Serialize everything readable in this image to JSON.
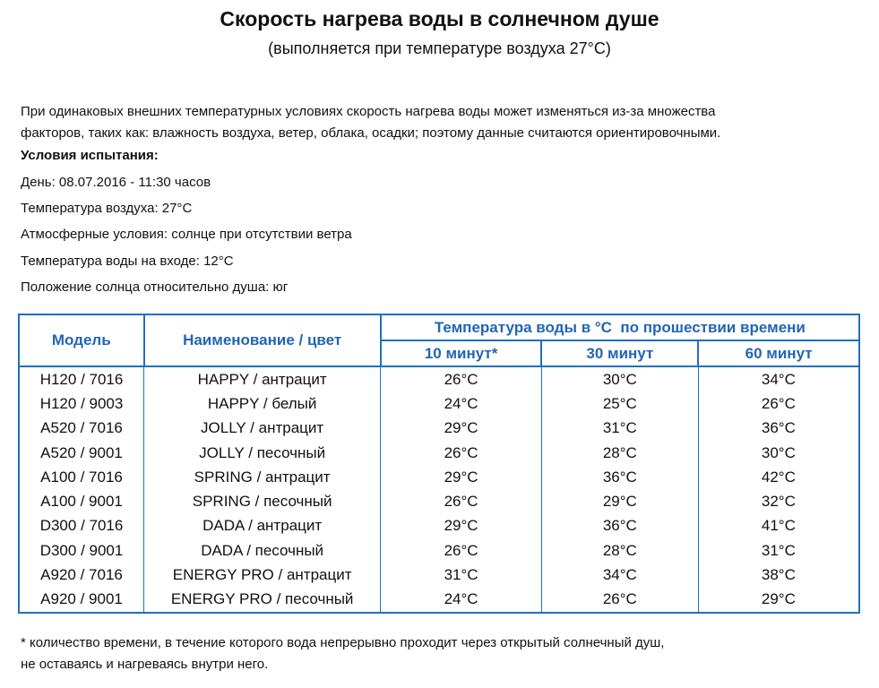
{
  "header": {
    "title": "Скорость нагрева воды в солнечном душе",
    "subtitle": "(выполняется при температуре воздуха 27°C)"
  },
  "intro": {
    "lines": [
      "При одинаковых внешних температурных условиях скорость нагрева воды может изменяться из-за множества",
      "факторов, таких как: влажность воздуха, ветер, облака, осадки; поэтому данные считаются ориентировочными."
    ],
    "conditions_heading": "Условия испытания:",
    "conditions": [
      "День: 08.07.2016 - 11:30 часов",
      "Температура воздуха: 27°C",
      "Атмосферные условия: солнце при отсутствии ветра",
      "Температура воды на входе: 12°C",
      "Положение солнца относительно душа: юг"
    ]
  },
  "table": {
    "col_model": "Модель",
    "col_name": "Наименование / цвет",
    "col_group": "Температура воды в °C  по прошествии времени",
    "col_times": [
      "10 минут*",
      "30 минут",
      "60 минут"
    ],
    "rows": [
      [
        "H120 / 7016",
        "HAPPY / антрацит",
        "26°C",
        "30°C",
        "34°C"
      ],
      [
        "H120 / 9003",
        "HAPPY / белый",
        "24°C",
        "25°C",
        "26°C"
      ],
      [
        "A520 / 7016",
        "JOLLY / антрацит",
        "29°C",
        "31°C",
        "36°C"
      ],
      [
        "A520 / 9001",
        "JOLLY / песочный",
        "26°C",
        "28°C",
        "30°C"
      ],
      [
        "A100 / 7016",
        "SPRING / антрацит",
        "29°C",
        "36°C",
        "42°C"
      ],
      [
        "A100 / 9001",
        "SPRING / песочный",
        "26°C",
        "29°C",
        "32°C"
      ],
      [
        "D300 / 7016",
        "DADA / антрацит",
        "29°C",
        "36°C",
        "41°C"
      ],
      [
        "D300 / 9001",
        "DADA / песочный",
        "26°C",
        "28°C",
        "31°C"
      ],
      [
        "A920 / 7016",
        "ENERGY PRO / антрацит",
        "31°C",
        "34°C",
        "38°C"
      ],
      [
        "A920 / 9001",
        "ENERGY PRO / песочный",
        "24°C",
        "26°C",
        "29°C"
      ]
    ]
  },
  "footnote": {
    "lines": [
      "* количество времени, в течение которого вода непрерывно проходит через открытый солнечный душ,",
      "не оставаясь и нагреваясь внутри него."
    ]
  }
}
